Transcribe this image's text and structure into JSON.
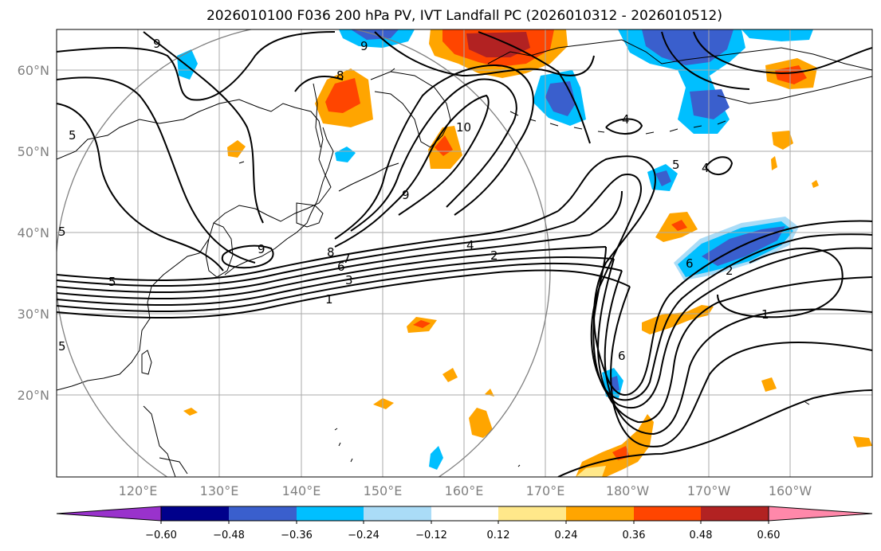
{
  "title": "2026010100 F036 200 hPa PV, IVT Landfall PC (2026010312 - 2026010512)",
  "map": {
    "lon_labels": [
      "120°E",
      "130°E",
      "140°E",
      "150°E",
      "160°E",
      "170°E",
      "180°W",
      "170°W",
      "160°W"
    ],
    "lat_labels": [
      "60°N",
      "50°N",
      "40°N",
      "30°N",
      "20°N"
    ],
    "projection": "PlateCarree",
    "extent": {
      "lon_min": 110,
      "lon_max": 210,
      "lat_min": 10,
      "lat_max": 65
    },
    "circle_center": {
      "lon": 140,
      "lat": 35
    },
    "grid": true
  },
  "colorbar": {
    "tick_labels": [
      "−0.60",
      "−0.48",
      "−0.36",
      "−0.24",
      "−0.12",
      "0.12",
      "0.24",
      "0.36",
      "0.48",
      "0.60"
    ],
    "colors": [
      "#9932cc",
      "#00008b",
      "#3a5fcd",
      "#00bfff",
      "#aadcf7",
      "#ffffff",
      "#ffe88a",
      "#ffa500",
      "#ff4500",
      "#b22222",
      "#ff88aa"
    ],
    "extend": "both"
  },
  "contour_labels": [
    "9",
    "5",
    "5",
    "5",
    "9",
    "8",
    "10",
    "9",
    "9",
    "8",
    "7",
    "6",
    "5",
    "4",
    "3",
    "2",
    "1",
    "4",
    "5",
    "4",
    "6",
    "2",
    "1",
    "6"
  ]
}
